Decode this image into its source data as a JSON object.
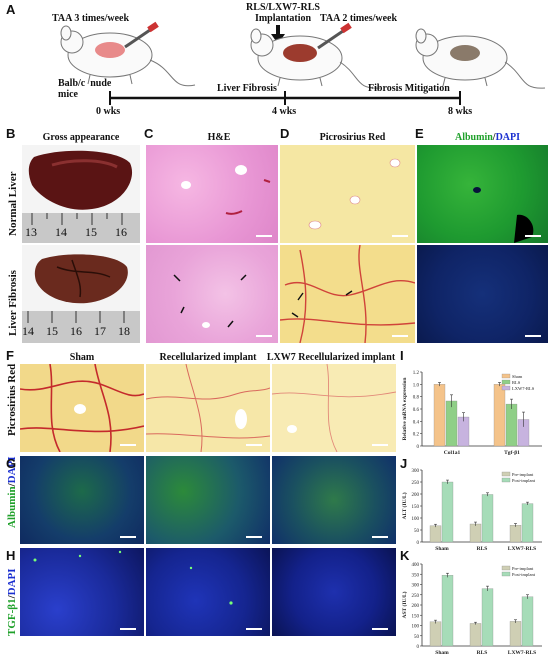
{
  "panels": {
    "a": "A",
    "b": "B",
    "c": "C",
    "d": "D",
    "e": "E",
    "f": "F",
    "g": "G",
    "h": "H",
    "i": "I",
    "j": "J",
    "k": "K"
  },
  "timeline": {
    "taa_first": "TAA  3 times/week",
    "implant_line1": "RLS/LXW7-RLS",
    "implant_line2": "Implantation",
    "taa_second": "TAA  2 times/week",
    "mice": "Balb/c  nude\nmice",
    "liver_fibrosis": "Liver Fibrosis",
    "fibrosis_mitigation": "Fibrosis  Mitigation",
    "t0": "0 wks",
    "t4": "4 wks",
    "t8": "8 wks"
  },
  "top_headers": {
    "gross": "Gross appearance",
    "he": "H&E",
    "picro": "Picrosirius Red",
    "albumin": "Albumin",
    "slash": "/",
    "dapi": "DAPI"
  },
  "top_rows": {
    "normal": "Normal Liver",
    "fibrosis": "Liver Fibrosis"
  },
  "ruler_top": [
    "13",
    "14",
    "15",
    "16"
  ],
  "ruler_bottom": [
    "14",
    "15",
    "16",
    "17",
    "18"
  ],
  "mid_headers": {
    "sham": "Sham",
    "recell": "Recellularized implant",
    "lxw7": "LXW7 Recellularized implant"
  },
  "mid_rows": {
    "picro": "Picrosirius Red",
    "albumin": "Albumin",
    "tgf": "TGF-β1",
    "slash": "/",
    "dapi": "DAPI"
  },
  "colors": {
    "albumin_green": "#1fa02a",
    "dapi_blue": "#1a2fd0",
    "sham_orange": "#f4c38a",
    "rls_green": "#8fcf87",
    "lxw7_purple": "#c7b3df",
    "pre_gray": "#cfcfb4",
    "post_green": "#a6dcb8"
  },
  "chart_data": [
    {
      "panel": "I",
      "type": "bar",
      "categories": [
        "Col1a1",
        "Tgf-β1"
      ],
      "series": [
        {
          "name": "Sham",
          "values": [
            1.0,
            1.0
          ]
        },
        {
          "name": "RLS",
          "values": [
            0.73,
            0.68
          ]
        },
        {
          "name": "LXW7-RLS",
          "values": [
            0.47,
            0.43
          ]
        }
      ],
      "errors": [
        [
          0.03,
          0.03
        ],
        [
          0.1,
          0.08
        ],
        [
          0.07,
          0.12
        ]
      ],
      "ylabel": "Relative mRNA expression",
      "ylim": [
        0,
        1.2
      ],
      "yticks": [
        "0",
        "0.2",
        "0.4",
        "0.6",
        "0.8",
        "1.0",
        "1.2"
      ],
      "legend": "top-right"
    },
    {
      "panel": "J",
      "type": "bar",
      "categories": [
        "Sham",
        "RLS",
        "LXW7-RLS"
      ],
      "series": [
        {
          "name": "Pre-implant",
          "values": [
            68,
            75,
            70
          ]
        },
        {
          "name": "Post-implant",
          "values": [
            250,
            198,
            160
          ]
        }
      ],
      "errors": [
        [
          6,
          8,
          7
        ],
        [
          8,
          7,
          6
        ]
      ],
      "ylabel": "ALT (IU/L)",
      "ylim": [
        0,
        300
      ],
      "yticks": [
        "0",
        "50",
        "100",
        "150",
        "200",
        "250",
        "300"
      ],
      "legend": "top-right"
    },
    {
      "panel": "K",
      "type": "bar",
      "categories": [
        "Sham",
        "RLS",
        "LXW7-RLS"
      ],
      "series": [
        {
          "name": "Pre-implant",
          "values": [
            118,
            110,
            120
          ]
        },
        {
          "name": "Post-implant",
          "values": [
            345,
            280,
            240
          ]
        }
      ],
      "errors": [
        [
          8,
          6,
          8
        ],
        [
          10,
          12,
          10
        ]
      ],
      "ylabel": "AST (IU/L)",
      "ylim": [
        0,
        400
      ],
      "yticks": [
        "0",
        "50",
        "100",
        "150",
        "200",
        "250",
        "300",
        "350",
        "400"
      ],
      "legend": "top-right"
    }
  ]
}
